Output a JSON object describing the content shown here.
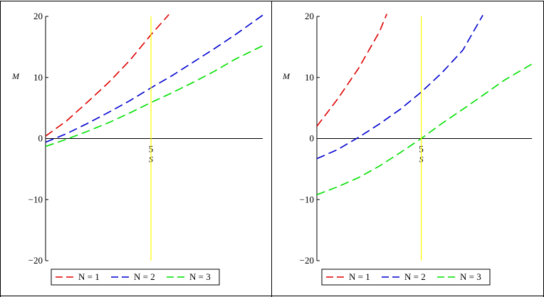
{
  "chart_data": [
    {
      "type": "line",
      "xlabel": "S",
      "ylabel": "M",
      "xlim": [
        0,
        10.3
      ],
      "ylim": [
        -20,
        20
      ],
      "xticks": [
        5
      ],
      "yticks": [
        -20,
        -10,
        0,
        10,
        20
      ],
      "vline": {
        "x": 5,
        "color": "#ffff00"
      },
      "legend_position": "bottom",
      "series": [
        {
          "name": "N = 1",
          "color": "#e00000",
          "dash": "dashed",
          "x": [
            0,
            1,
            2,
            3,
            4,
            5,
            5.85
          ],
          "y": [
            0.4,
            2.9,
            6.0,
            9.2,
            12.8,
            17.0,
            20.3
          ]
        },
        {
          "name": "N = 2",
          "color": "#0000d0",
          "dash": "dashed",
          "x": [
            0,
            1,
            2,
            3,
            4,
            5,
            6,
            7,
            8,
            9,
            10.3
          ],
          "y": [
            -0.6,
            0.8,
            2.5,
            4.3,
            6.2,
            8.3,
            10.3,
            12.5,
            14.7,
            17.0,
            20.2
          ]
        },
        {
          "name": "N = 3",
          "color": "#00e000",
          "dash": "dashed",
          "x": [
            0,
            1,
            2,
            3,
            4,
            5,
            6,
            7,
            8,
            9,
            10.3
          ],
          "y": [
            -1.3,
            -0.1,
            1.2,
            2.6,
            4.2,
            5.9,
            7.5,
            9.2,
            11.0,
            13.0,
            15.2
          ]
        }
      ]
    },
    {
      "type": "line",
      "xlabel": "S",
      "ylabel": "M",
      "xlim": [
        0,
        10.3
      ],
      "ylim": [
        -20,
        20
      ],
      "xticks": [
        5
      ],
      "yticks": [
        -20,
        -10,
        0,
        10,
        20
      ],
      "vline": {
        "x": 5,
        "color": "#ffff00"
      },
      "legend_position": "bottom",
      "series": [
        {
          "name": "N = 1",
          "color": "#e00000",
          "dash": "dashed",
          "x": [
            0,
            1,
            2,
            3,
            3.35
          ],
          "y": [
            2.0,
            6.5,
            11.5,
            17.5,
            20.4
          ]
        },
        {
          "name": "N = 2",
          "color": "#0000d0",
          "dash": "dashed",
          "x": [
            0,
            1,
            2,
            3,
            4,
            5,
            6,
            7,
            7.95
          ],
          "y": [
            -3.3,
            -1.8,
            0.2,
            2.4,
            4.8,
            7.6,
            10.8,
            14.5,
            20.2
          ]
        },
        {
          "name": "N = 3",
          "color": "#00e000",
          "dash": "dashed",
          "x": [
            0,
            1,
            2,
            3,
            4,
            5,
            6,
            7,
            8,
            9,
            10.3
          ],
          "y": [
            -9.2,
            -7.9,
            -6.4,
            -4.5,
            -2.3,
            0.0,
            2.5,
            4.8,
            7.2,
            9.6,
            12.2
          ]
        }
      ]
    }
  ]
}
